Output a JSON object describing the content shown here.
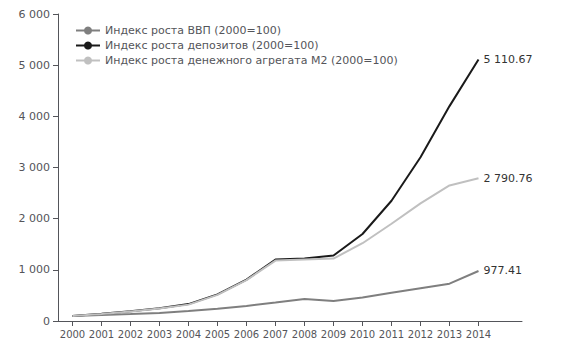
{
  "chart_data": {
    "type": "line",
    "x": [
      2000,
      2001,
      2002,
      2003,
      2004,
      2005,
      2006,
      2007,
      2008,
      2009,
      2010,
      2011,
      2012,
      2013,
      2014
    ],
    "series": [
      {
        "name": "Индекс роста ВВП (2000=100)",
        "color": "#7f7f7f",
        "values": [
          100,
          118,
          135,
          158,
          195,
          240,
          295,
          360,
          430,
          390,
          460,
          550,
          640,
          730,
          977.41
        ]
      },
      {
        "name": "Индекс роста депозитов (2000=100)",
        "color": "#1a1a1a",
        "values": [
          100,
          140,
          190,
          250,
          330,
          520,
          810,
          1200,
          1220,
          1280,
          1700,
          2350,
          3200,
          4200,
          5110.67
        ]
      },
      {
        "name": "Индекс роста денежного агрегата М2 (2000=100)",
        "color": "#c0c0c0",
        "values": [
          100,
          138,
          185,
          245,
          320,
          510,
          800,
          1180,
          1200,
          1220,
          1520,
          1900,
          2300,
          2650,
          2790.76
        ]
      }
    ],
    "annotations": [
      {
        "text": "5 110.67",
        "x": 2014,
        "y": 5110.67
      },
      {
        "text": "2 790.76",
        "x": 2014,
        "y": 2790.76
      },
      {
        "text": "977.41",
        "x": 2014,
        "y": 977.41
      }
    ],
    "xlim": [
      1999.5,
      2015.5
    ],
    "xticks": [
      2000,
      2001,
      2002,
      2003,
      2004,
      2005,
      2006,
      2007,
      2008,
      2009,
      2010,
      2011,
      2012,
      2013,
      2014
    ],
    "ylim": [
      0,
      6000
    ],
    "yticks": [
      0,
      {
        "value": 1000,
        "label": "1 000"
      },
      {
        "value": 2000,
        "label": "2 000"
      },
      {
        "value": 3000,
        "label": "3 000"
      },
      {
        "value": 4000,
        "label": "4 000"
      },
      {
        "value": 5000,
        "label": "5 000"
      },
      {
        "value": 6000,
        "label": "6 000"
      }
    ],
    "legend": "upper left",
    "grid": false
  }
}
